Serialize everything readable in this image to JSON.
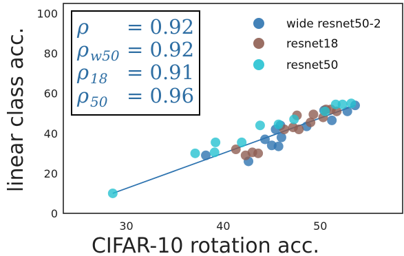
{
  "chart_data": {
    "type": "scatter",
    "title": "",
    "xlabel": "CIFAR-10 rotation acc.",
    "ylabel": "linear class acc.",
    "xlim": [
      23.5,
      58.5
    ],
    "ylim": [
      0,
      105
    ],
    "xticks": [
      30,
      40,
      50
    ],
    "yticks": [
      0,
      20,
      40,
      60,
      80,
      100
    ],
    "grid": false,
    "legend_position": "top-right",
    "series": [
      {
        "name": "wide resnet50-2",
        "color": "#2f74b0",
        "points": [
          [
            38.2,
            29
          ],
          [
            42.6,
            26
          ],
          [
            44.3,
            37
          ],
          [
            45.0,
            34
          ],
          [
            45.4,
            42
          ],
          [
            45.7,
            33.5
          ],
          [
            45.9,
            44
          ],
          [
            46.0,
            38
          ],
          [
            48.6,
            43.5
          ],
          [
            50.4,
            51.5
          ],
          [
            51.2,
            46.5
          ],
          [
            52.8,
            51
          ],
          [
            53.6,
            54
          ]
        ]
      },
      {
        "name": "resnet18",
        "color": "#8f5e52",
        "points": [
          [
            41.3,
            32
          ],
          [
            42.3,
            29
          ],
          [
            43.0,
            30.5
          ],
          [
            43.6,
            30
          ],
          [
            46.3,
            42
          ],
          [
            47.2,
            43
          ],
          [
            47.6,
            49
          ],
          [
            47.8,
            42
          ],
          [
            49.0,
            45.5
          ],
          [
            49.3,
            49.5
          ],
          [
            50.3,
            48
          ],
          [
            50.6,
            52
          ],
          [
            51.1,
            52
          ],
          [
            51.7,
            51
          ]
        ]
      },
      {
        "name": "resnet50",
        "color": "#27c2d1",
        "points": [
          [
            28.6,
            10
          ],
          [
            37.1,
            30
          ],
          [
            39.2,
            35.5
          ],
          [
            39.1,
            30.5
          ],
          [
            41.9,
            35.5
          ],
          [
            43.8,
            44
          ],
          [
            45.7,
            44.5
          ],
          [
            47.3,
            47
          ],
          [
            50.5,
            51
          ],
          [
            51.6,
            54.5
          ],
          [
            52.3,
            54.5
          ],
          [
            53.2,
            55
          ]
        ]
      }
    ],
    "regression_line": {
      "x": [
        28.6,
        53.6
      ],
      "y": [
        10,
        54
      ],
      "color": "#2f74b0"
    },
    "annotation": {
      "lines": [
        {
          "symbol": "ρ",
          "sub": "",
          "value": "= 0.92"
        },
        {
          "symbol": "ρ",
          "sub": "w50",
          "value": "= 0.92"
        },
        {
          "symbol": "ρ",
          "sub": "18",
          "value": "= 0.91"
        },
        {
          "symbol": "ρ",
          "sub": "50",
          "value": "= 0.96"
        }
      ]
    }
  }
}
